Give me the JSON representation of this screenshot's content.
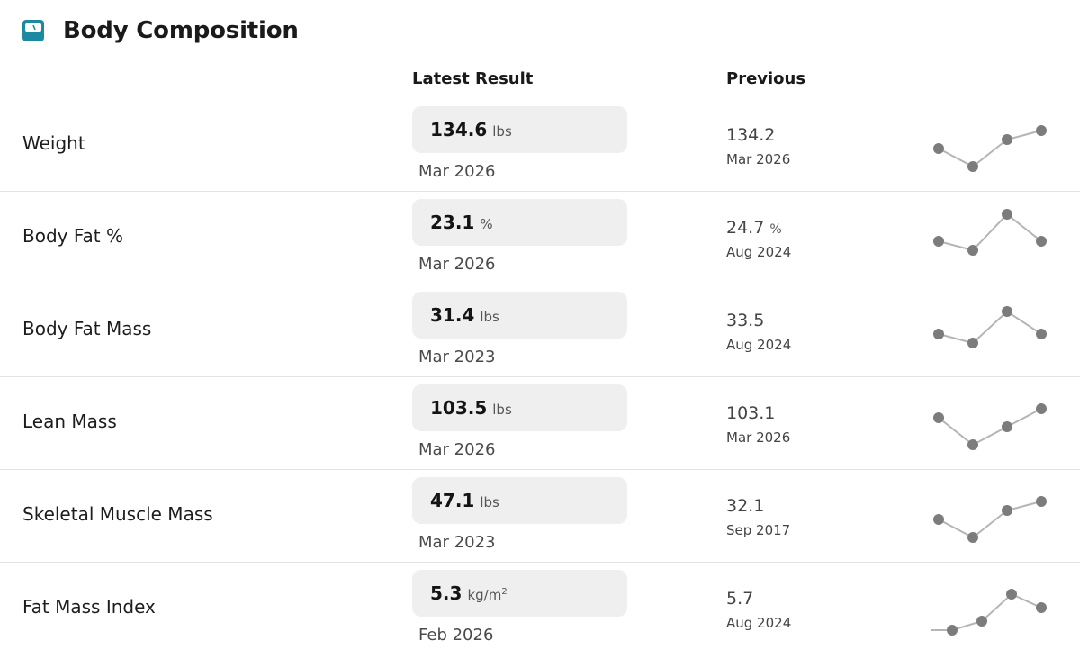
{
  "header": {
    "title": "Body Composition",
    "icon": "scale-icon",
    "accent": "#1b8aa0"
  },
  "columns": {
    "latest": "Latest Result",
    "previous": "Previous"
  },
  "rows": [
    {
      "name": "Weight",
      "latest_value": "134.6",
      "latest_unit": "lbs",
      "latest_date": "Mar 2026",
      "prev_value": "134.2",
      "prev_unit": "",
      "prev_date": "Mar 2026",
      "trend": [
        3,
        1,
        4,
        5
      ]
    },
    {
      "name": "Body Fat %",
      "latest_value": "23.1",
      "latest_unit": "%",
      "latest_date": "Mar 2026",
      "prev_value": "24.7",
      "prev_unit": "%",
      "prev_date": "Aug 2024",
      "trend": [
        3,
        2,
        6,
        3
      ]
    },
    {
      "name": "Body Fat Mass",
      "latest_value": "31.4",
      "latest_unit": "lbs",
      "latest_date": "Mar 2023",
      "prev_value": "33.5",
      "prev_unit": "",
      "prev_date": "Aug 2024",
      "trend": [
        3,
        2,
        5.5,
        3
      ]
    },
    {
      "name": "Lean Mass",
      "latest_value": "103.5",
      "latest_unit": "lbs",
      "latest_date": "Mar 2026",
      "prev_value": "103.1",
      "prev_unit": "",
      "prev_date": "Mar 2026",
      "trend": [
        4,
        1,
        3,
        5
      ]
    },
    {
      "name": "Skeletal Muscle Mass",
      "latest_value": "47.1",
      "latest_unit": "lbs",
      "latest_date": "Mar 2023",
      "prev_value": "32.1",
      "prev_unit": "",
      "prev_date": "Sep 2017",
      "trend": [
        3,
        1,
        4,
        5
      ]
    },
    {
      "name": "Fat Mass Index",
      "latest_value": "5.3",
      "latest_unit": "kg/m",
      "latest_unit_sup": "2",
      "latest_date": "Feb 2026",
      "prev_value": "5.7",
      "prev_unit": "",
      "prev_date": "Aug 2024",
      "trend": [
        1,
        2,
        5,
        3.5
      ]
    }
  ],
  "colors": {
    "spark": "#7c7c7c",
    "spark_line": "#b5b5b5"
  }
}
